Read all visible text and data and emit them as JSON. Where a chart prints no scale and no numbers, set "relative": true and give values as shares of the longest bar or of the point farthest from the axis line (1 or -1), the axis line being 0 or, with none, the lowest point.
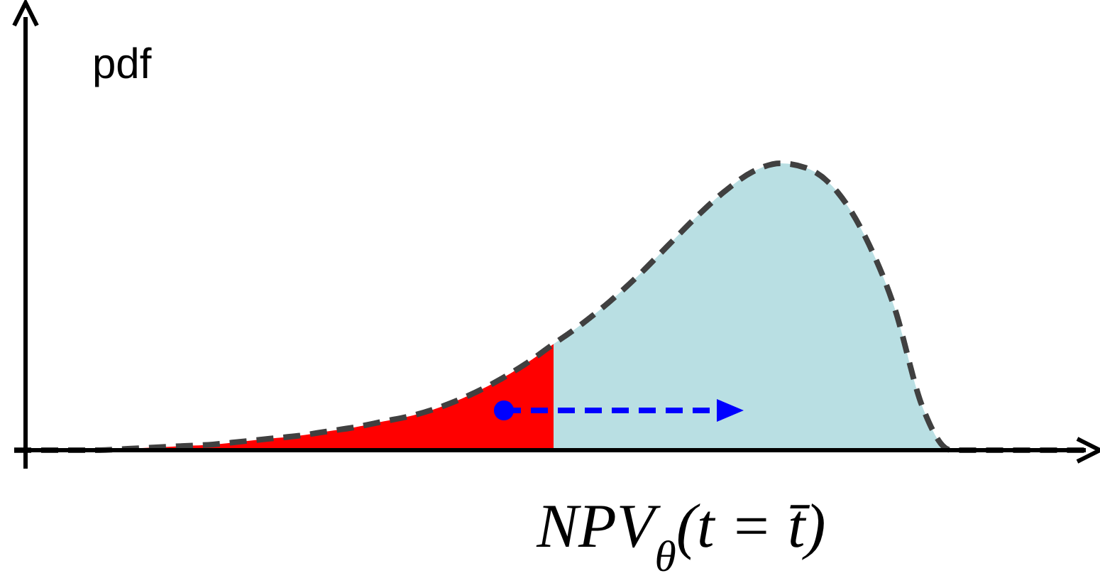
{
  "chart_data": {
    "type": "area",
    "relative": true,
    "xlabel": "NPV$_{θ}$(t = t̄)",
    "ylabel": "pdf",
    "line_style": "dashed",
    "categories": [
      null,
      null,
      null,
      null,
      null,
      null,
      null,
      null,
      null,
      null,
      null,
      null,
      null,
      null,
      null,
      null,
      null,
      null,
      null,
      null,
      null,
      null,
      null,
      null,
      null,
      null,
      null,
      null,
      null,
      null,
      null,
      null,
      null,
      null,
      null,
      null,
      null,
      null,
      null
    ],
    "series": [
      {
        "color": "#ff0000",
        "values": [
          0,
          0,
          0,
          0,
          0.005,
          0.01,
          0.015,
          0.02,
          0.03,
          0.04,
          0.05,
          0.065,
          0.08,
          0.1,
          0.12,
          0.15,
          0.19,
          0.24,
          0.3,
          0.37,
          null,
          null,
          null,
          null,
          null,
          null,
          null,
          null,
          null,
          null,
          null,
          null,
          null,
          null,
          null,
          null,
          null,
          null,
          null
        ]
      },
      {
        "color": "#b9dfe3",
        "values": [
          null,
          null,
          null,
          null,
          null,
          null,
          null,
          null,
          null,
          null,
          null,
          null,
          null,
          null,
          null,
          null,
          null,
          null,
          null,
          0.37,
          0.44,
          0.52,
          0.61,
          0.71,
          0.81,
          0.9,
          0.97,
          1,
          0.98,
          0.9,
          0.74,
          0.5,
          0.15,
          0,
          0,
          0,
          0,
          0,
          0
        ]
      },
      {
        "type": "line",
        "color": "#404040",
        "values": [
          0,
          0,
          0,
          0,
          0.005,
          0.01,
          0.015,
          0.02,
          0.03,
          0.04,
          0.05,
          0.065,
          0.08,
          0.1,
          0.12,
          0.15,
          0.19,
          0.24,
          0.3,
          0.37,
          0.44,
          0.52,
          0.61,
          0.71,
          0.81,
          0.9,
          0.97,
          1,
          0.98,
          0.9,
          0.74,
          0.5,
          0.15,
          0,
          0,
          0,
          0,
          0,
          0
        ]
      }
    ]
  }
}
